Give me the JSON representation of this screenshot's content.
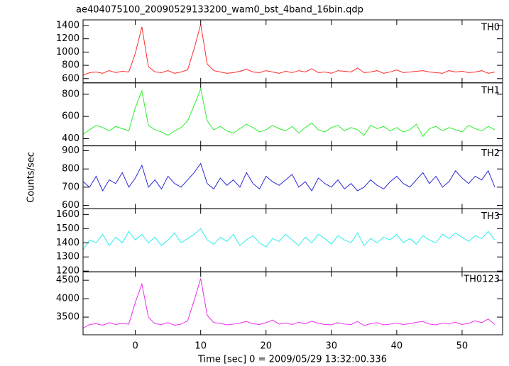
{
  "chart_data": {
    "type": "line",
    "title": "ae404075100_20090529133200_wam0_bst_4band_16bin.qdp",
    "xlabel": "Time [sec] 0 = 2009/05/29 13:32:00.336",
    "ylabel": "Counts/sec",
    "xlim": [
      -8,
      56.2
    ],
    "xticks": [
      0,
      10,
      20,
      30,
      40,
      50
    ],
    "x": [
      -8,
      -7,
      -6,
      -5,
      -4,
      -3,
      -2,
      -1,
      0,
      1,
      2,
      3,
      4,
      5,
      6,
      7,
      8,
      9,
      10,
      11,
      12,
      13,
      14,
      15,
      16,
      17,
      18,
      19,
      20,
      21,
      22,
      23,
      24,
      25,
      26,
      27,
      28,
      29,
      30,
      31,
      32,
      33,
      34,
      35,
      36,
      37,
      38,
      39,
      40,
      41,
      42,
      43,
      44,
      45,
      46,
      47,
      48,
      49,
      50,
      51,
      52,
      53,
      54,
      55
    ],
    "series": [
      {
        "name": "TH0",
        "color": "#ff2a2a",
        "ylim": [
          536,
          1485
        ],
        "yticks": [
          600,
          800,
          1000,
          1200,
          1400
        ],
        "values": [
          650,
          690,
          700,
          680,
          720,
          690,
          710,
          700,
          980,
          1380,
          780,
          700,
          690,
          720,
          680,
          700,
          730,
          1050,
          1420,
          820,
          720,
          700,
          680,
          690,
          710,
          740,
          700,
          690,
          720,
          700,
          680,
          710,
          690,
          720,
          700,
          750,
          690,
          700,
          680,
          720,
          710,
          700,
          760,
          690,
          700,
          720,
          680,
          700,
          730,
          690,
          700,
          710,
          720,
          700,
          690,
          680,
          720,
          700,
          710,
          690,
          700,
          720,
          680,
          700
        ]
      },
      {
        "name": "TH1",
        "color": "#2aee2a",
        "ylim": [
          335,
          903
        ],
        "yticks": [
          400,
          600,
          800
        ],
        "values": [
          440,
          480,
          520,
          500,
          470,
          510,
          490,
          470,
          680,
          830,
          520,
          480,
          460,
          430,
          470,
          500,
          560,
          700,
          850,
          560,
          480,
          510,
          470,
          450,
          490,
          530,
          500,
          460,
          480,
          520,
          490,
          470,
          510,
          450,
          500,
          540,
          480,
          460,
          500,
          520,
          470,
          500,
          480,
          430,
          520,
          490,
          510,
          470,
          500,
          460,
          480,
          530,
          420,
          490,
          510,
          470,
          500,
          480,
          460,
          520,
          490,
          470,
          510,
          480
        ]
      },
      {
        "name": "TH2",
        "color": "#2a2ad8",
        "ylim": [
          581,
          927
        ],
        "yticks": [
          600,
          700,
          800,
          900
        ],
        "values": [
          730,
          700,
          760,
          680,
          740,
          720,
          780,
          700,
          750,
          820,
          700,
          740,
          690,
          760,
          720,
          700,
          740,
          780,
          830,
          720,
          690,
          750,
          710,
          740,
          700,
          780,
          720,
          690,
          760,
          730,
          710,
          740,
          770,
          700,
          730,
          680,
          750,
          720,
          700,
          740,
          690,
          720,
          680,
          700,
          740,
          710,
          690,
          730,
          760,
          720,
          700,
          740,
          780,
          720,
          760,
          700,
          730,
          790,
          750,
          720,
          760,
          740,
          790,
          700
        ]
      },
      {
        "name": "TH3",
        "color": "#2aeeee",
        "ylim": [
          1195,
          1640
        ],
        "yticks": [
          1200,
          1300,
          1400,
          1500,
          1600
        ],
        "values": [
          1350,
          1420,
          1400,
          1460,
          1380,
          1440,
          1400,
          1480,
          1420,
          1460,
          1400,
          1440,
          1380,
          1420,
          1470,
          1400,
          1430,
          1460,
          1500,
          1420,
          1390,
          1440,
          1410,
          1460,
          1380,
          1420,
          1450,
          1400,
          1370,
          1430,
          1410,
          1460,
          1420,
          1380,
          1440,
          1400,
          1460,
          1430,
          1390,
          1450,
          1420,
          1400,
          1470,
          1380,
          1430,
          1400,
          1440,
          1420,
          1460,
          1400,
          1430,
          1390,
          1450,
          1420,
          1400,
          1460,
          1430,
          1470,
          1440,
          1410,
          1450,
          1430,
          1480,
          1420
        ]
      },
      {
        "name": "TH0123",
        "color": "#ee2aee",
        "ylim": [
          3020,
          4730
        ],
        "yticks": [
          3500,
          4000,
          4500
        ],
        "values": [
          3200,
          3300,
          3320,
          3280,
          3350,
          3300,
          3330,
          3310,
          3900,
          4400,
          3500,
          3320,
          3300,
          3350,
          3280,
          3310,
          3400,
          3950,
          4550,
          3550,
          3350,
          3330,
          3290,
          3310,
          3340,
          3380,
          3320,
          3300,
          3350,
          3420,
          3310,
          3340,
          3300,
          3360,
          3320,
          3390,
          3330,
          3300,
          3290,
          3350,
          3310,
          3300,
          3380,
          3270,
          3320,
          3350,
          3290,
          3310,
          3340,
          3300,
          3320,
          3360,
          3380,
          3310,
          3290,
          3340,
          3320,
          3360,
          3300,
          3330,
          3400,
          3350,
          3450,
          3300
        ]
      }
    ]
  }
}
